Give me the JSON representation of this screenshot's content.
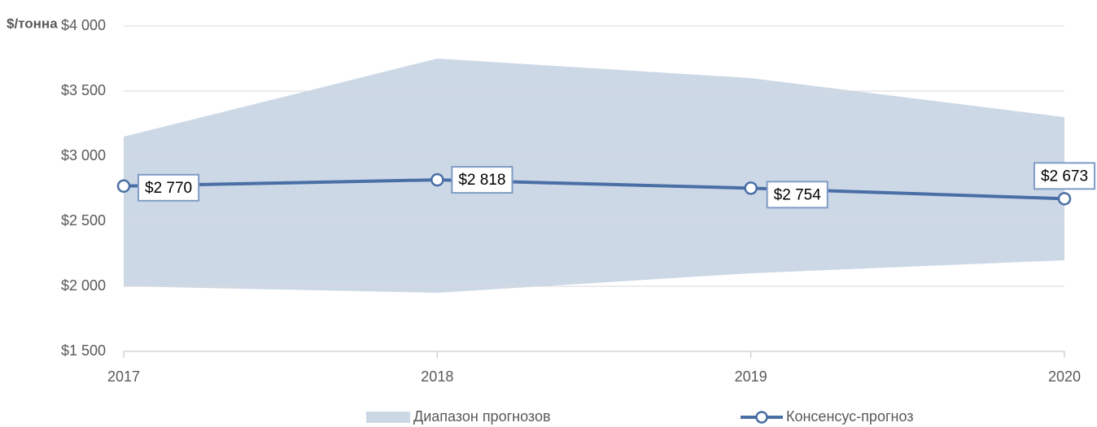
{
  "chart_data": {
    "type": "line-range",
    "y_label": "$/тонна",
    "categories": [
      "2017",
      "2018",
      "2019",
      "2020"
    ],
    "series": [
      {
        "name": "Диапазон прогнозов",
        "color": "#cdd8e7",
        "low": [
          2000,
          1950,
          2100,
          2200
        ],
        "high": [
          3150,
          3750,
          3600,
          3300
        ]
      },
      {
        "name": "Консенсус-прогноз",
        "color": "#4a6fa5",
        "values": [
          2770,
          2818,
          2754,
          2673
        ],
        "value_labels": [
          "$2 770",
          "$2 818",
          "$2 754",
          "$2 673"
        ]
      }
    ],
    "ylim": [
      1500,
      4000
    ],
    "yticks": [
      {
        "value": 1500,
        "label": "$1 500"
      },
      {
        "value": 2000,
        "label": "$2 000"
      },
      {
        "value": 2500,
        "label": "$2 500"
      },
      {
        "value": 3000,
        "label": "$3 000"
      },
      {
        "value": 3500,
        "label": "$3 500"
      },
      {
        "value": 4000,
        "label": "$4 000"
      }
    ],
    "grid": true
  }
}
